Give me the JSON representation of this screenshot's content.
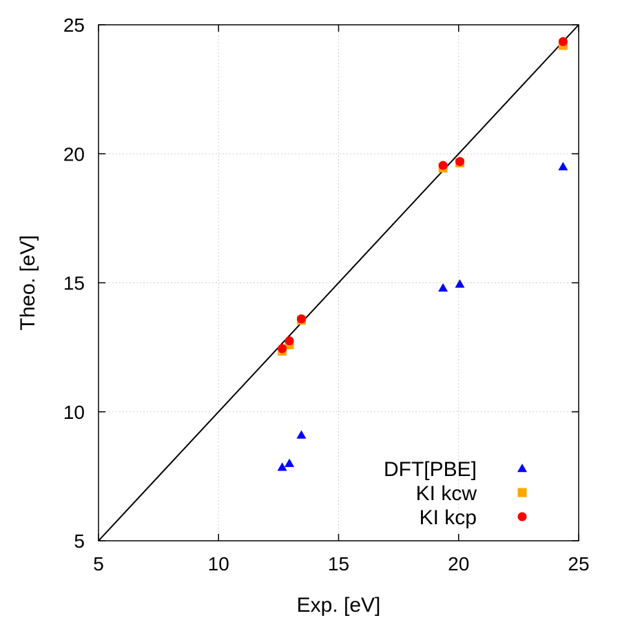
{
  "chart_data": {
    "type": "scatter",
    "xlabel": "Exp. [eV]",
    "ylabel": "Theo. [eV]",
    "xlim": [
      5,
      25
    ],
    "ylim": [
      5,
      25
    ],
    "xticks": [
      5,
      10,
      15,
      20,
      25
    ],
    "yticks": [
      5,
      10,
      15,
      20,
      25
    ],
    "grid": true,
    "reference_line": "y = x",
    "legend": "bottom-right",
    "series": [
      {
        "name": "DFT[PBE]",
        "marker": "triangle",
        "color": "#0000ff",
        "points": [
          {
            "x": 12.65,
            "y": 7.85
          },
          {
            "x": 12.95,
            "y": 8.0
          },
          {
            "x": 13.45,
            "y": 9.1
          },
          {
            "x": 19.35,
            "y": 14.8
          },
          {
            "x": 20.05,
            "y": 14.95
          },
          {
            "x": 24.35,
            "y": 19.5
          }
        ]
      },
      {
        "name": "KI kcw",
        "marker": "square",
        "color": "#ffa500",
        "points": [
          {
            "x": 12.65,
            "y": 12.35
          },
          {
            "x": 12.95,
            "y": 12.6
          },
          {
            "x": 13.45,
            "y": 13.55
          },
          {
            "x": 19.35,
            "y": 19.45
          },
          {
            "x": 20.05,
            "y": 19.65
          },
          {
            "x": 24.35,
            "y": 24.2
          }
        ]
      },
      {
        "name": "KI kcp",
        "marker": "circle",
        "color": "#ff0000",
        "points": [
          {
            "x": 12.65,
            "y": 12.45
          },
          {
            "x": 12.95,
            "y": 12.75
          },
          {
            "x": 13.45,
            "y": 13.6
          },
          {
            "x": 19.35,
            "y": 19.55
          },
          {
            "x": 20.05,
            "y": 19.7
          },
          {
            "x": 24.35,
            "y": 24.35
          }
        ]
      }
    ]
  }
}
